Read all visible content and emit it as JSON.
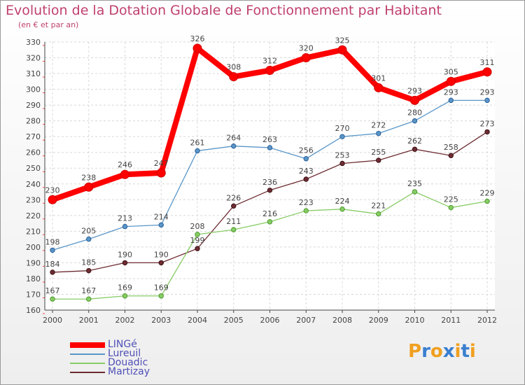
{
  "title": "Evolution de la Dotation Globale de Fonctionnement par Habitant",
  "subtitle": "(en € et par an)",
  "brand": {
    "letters": [
      "P",
      "r",
      "o",
      "x",
      "i",
      "t",
      "i"
    ],
    "colors": [
      "#f0a020",
      "#3a7fd0",
      "#f0a020",
      "#3a7fd0",
      "#f0a020",
      "#3a7fd0",
      "#f0a020"
    ]
  },
  "chart_data": {
    "type": "line",
    "title": "Evolution de la Dotation Globale de Fonctionnement par Habitant",
    "subtitle": "(en € et par an)",
    "xlabel": "",
    "ylabel": "",
    "ylim": [
      160,
      330
    ],
    "yticks": [
      160,
      170,
      180,
      190,
      200,
      210,
      220,
      230,
      240,
      250,
      260,
      270,
      280,
      290,
      300,
      310,
      320,
      330
    ],
    "grid": true,
    "legend_position": "bottom-left",
    "x": [
      "2000",
      "2001",
      "2002",
      "2003",
      "2004",
      "2005",
      "2006",
      "2007",
      "2008",
      "2009",
      "2010",
      "2011",
      "2012"
    ],
    "series": [
      {
        "name": "LINGé",
        "color": "#ff0000",
        "values": [
          230,
          238,
          246,
          247,
          326,
          308,
          312,
          320,
          325,
          301,
          293,
          305,
          311
        ],
        "labels": [
          "230",
          "238",
          "246",
          "247",
          "326",
          "308",
          "312",
          "320",
          "325",
          "301",
          "293",
          "305",
          "311"
        ]
      },
      {
        "name": "Lureuil",
        "color": "#5a96c8",
        "values": [
          198,
          205,
          213,
          214,
          261,
          264,
          263,
          256,
          270,
          272,
          280,
          293,
          293
        ],
        "labels": [
          "198",
          "205",
          "213",
          "214",
          "261",
          "264",
          "263",
          "256",
          "270",
          "272",
          "280",
          "293",
          "293"
        ]
      },
      {
        "name": "Douadic",
        "color": "#88cc66",
        "values": [
          167,
          167,
          169,
          169,
          208,
          211,
          216,
          223,
          224,
          221,
          235,
          225,
          229
        ],
        "labels": [
          "167",
          "167",
          "169",
          "169",
          "208",
          "211",
          "216",
          "223",
          "224",
          "221",
          "235",
          "225",
          "229"
        ]
      },
      {
        "name": "Martizay",
        "color": "#6e2c32",
        "values": [
          184,
          185,
          190,
          190,
          199,
          226,
          236,
          243,
          253,
          255,
          262,
          258,
          273
        ],
        "labels": [
          "184",
          "185",
          "190",
          "190",
          "199",
          "226",
          "236",
          "243",
          "253",
          "255",
          "262",
          "258",
          "273"
        ]
      }
    ]
  }
}
